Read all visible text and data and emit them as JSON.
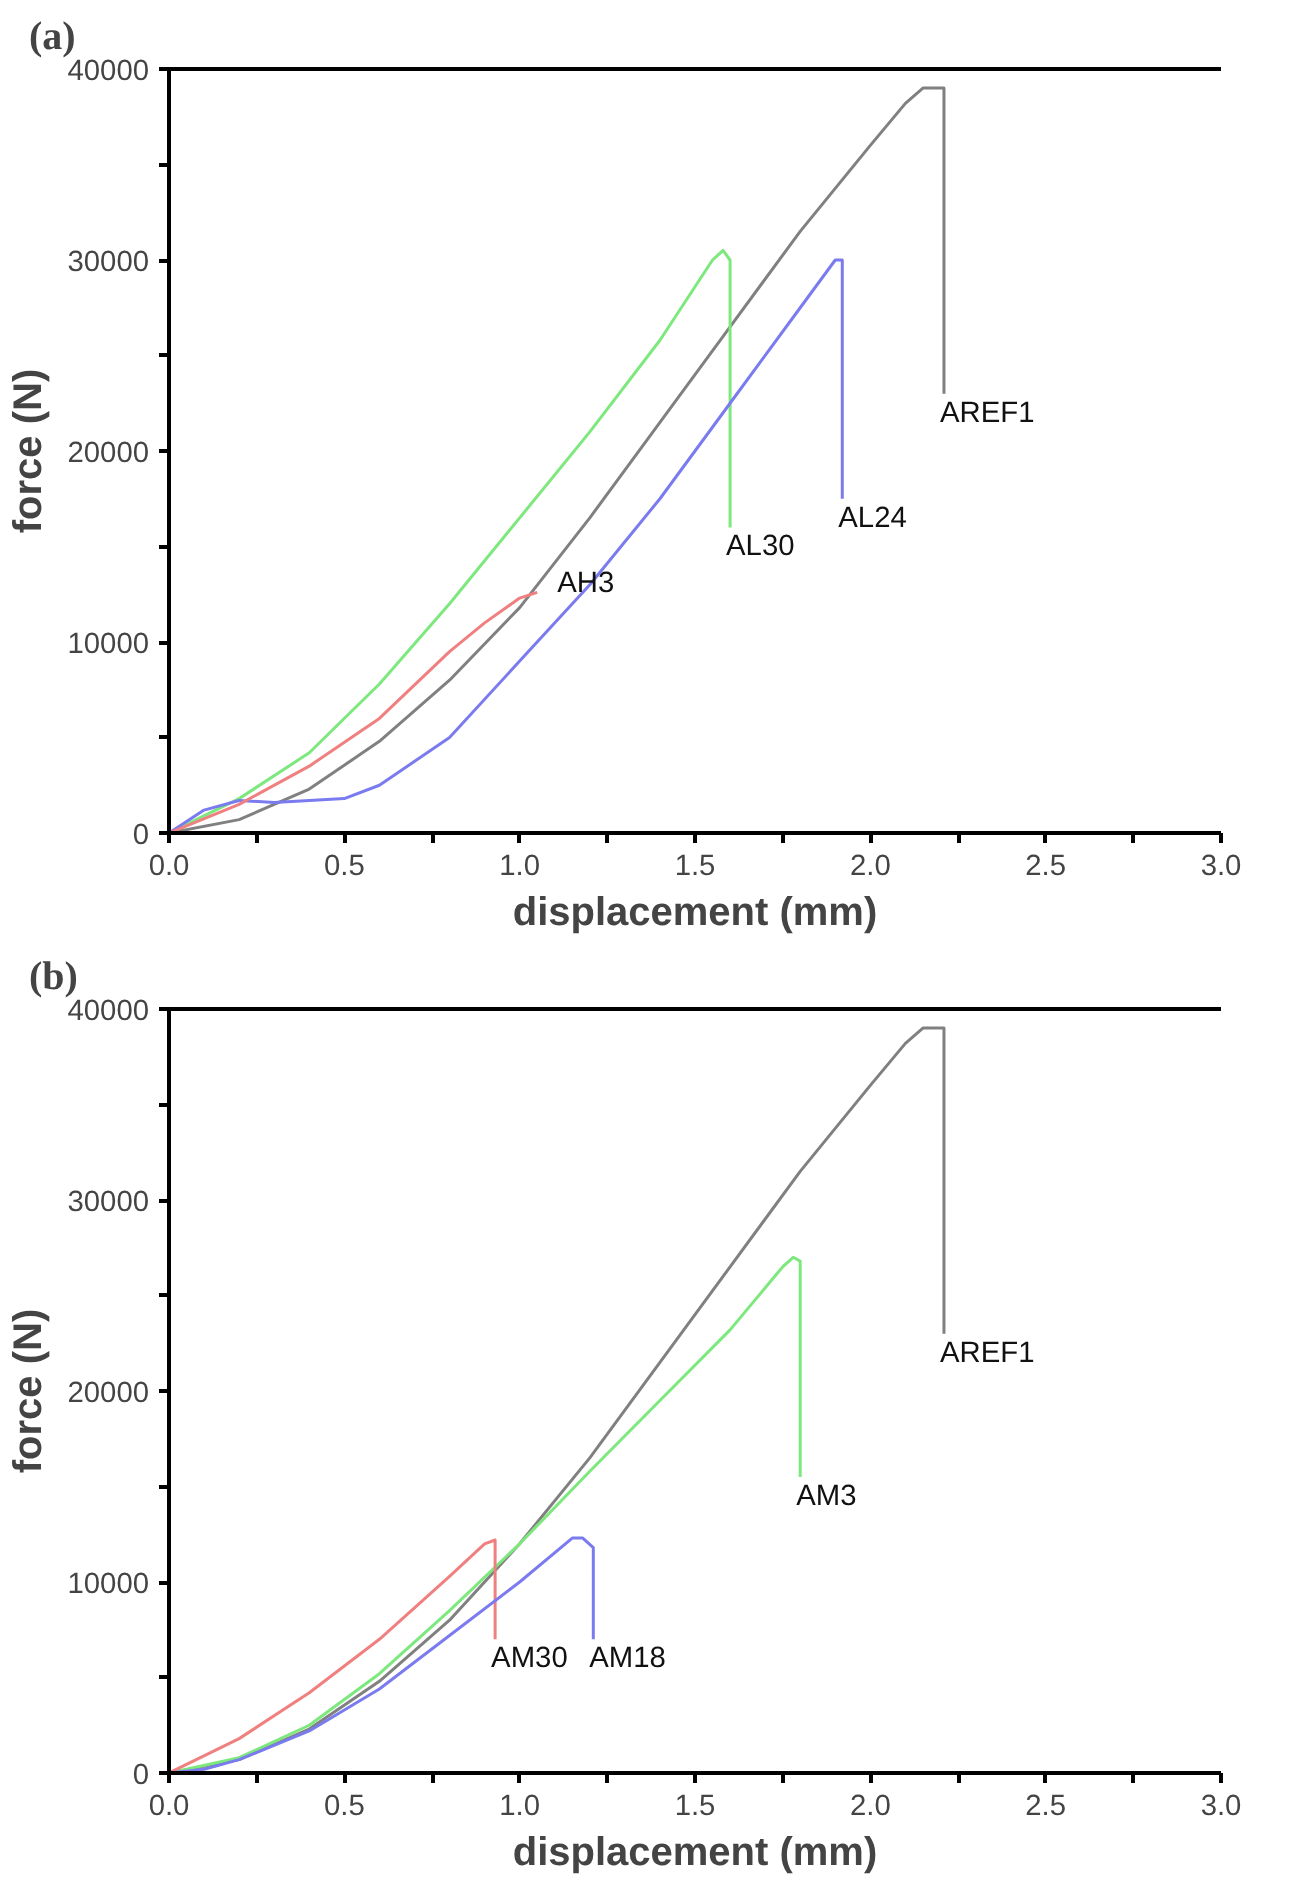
{
  "chart_data": [
    {
      "type": "line",
      "title": "(a)",
      "xlabel": "displacement (mm)",
      "ylabel": "force (N)",
      "xlim": [
        0,
        3.0
      ],
      "ylim": [
        0,
        40000
      ],
      "xticks": [
        {
          "value": 0,
          "label": "0.0"
        },
        {
          "value": 0.25,
          "label": null
        },
        {
          "value": 0.5,
          "label": "0.5"
        },
        {
          "value": 0.75,
          "label": null
        },
        {
          "value": 1.0,
          "label": "1.0"
        },
        {
          "value": 1.25,
          "label": null
        },
        {
          "value": 1.5,
          "label": "1.5"
        },
        {
          "value": 1.75,
          "label": null
        },
        {
          "value": 2.0,
          "label": "2.0"
        },
        {
          "value": 2.25,
          "label": null
        },
        {
          "value": 2.5,
          "label": "2.5"
        },
        {
          "value": 2.75,
          "label": null
        },
        {
          "value": 3.0,
          "label": "3.0"
        }
      ],
      "yticks": [
        0,
        {
          "value": 5000,
          "label": null
        },
        10000,
        {
          "value": 15000,
          "label": null
        },
        20000,
        {
          "value": 25000,
          "label": null
        },
        30000,
        {
          "value": 35000,
          "label": null
        },
        40000
      ],
      "grid": false,
      "marker": "none",
      "line_style": "solid",
      "series": [
        {
          "color": "#808080",
          "x": [
            0,
            0.2,
            0.4,
            0.6,
            0.8,
            1.0,
            1.2,
            1.4,
            1.6,
            1.8,
            2.0,
            2.1,
            2.15,
            2.21,
            2.21
          ],
          "values": [
            0,
            700,
            2300,
            4800,
            8000,
            11800,
            16500,
            21500,
            26500,
            31500,
            36000,
            38200,
            39000,
            39000,
            23000
          ]
        },
        {
          "color": "#7de87d",
          "x": [
            0,
            0.2,
            0.4,
            0.6,
            0.8,
            1.0,
            1.2,
            1.4,
            1.55,
            1.58,
            1.6,
            1.6
          ],
          "values": [
            0,
            1800,
            4200,
            7800,
            12000,
            16500,
            21000,
            25800,
            30000,
            30500,
            30000,
            16000
          ]
        },
        {
          "color": "#7b7bf0",
          "x": [
            0,
            0.1,
            0.2,
            0.3,
            0.5,
            0.6,
            0.8,
            1.0,
            1.2,
            1.4,
            1.6,
            1.8,
            1.9,
            1.92,
            1.92
          ],
          "values": [
            0,
            1200,
            1700,
            1600,
            1800,
            2500,
            5000,
            9000,
            13000,
            17500,
            22500,
            27500,
            30000,
            30000,
            17500
          ]
        },
        {
          "color": "#f08080",
          "x": [
            0,
            0.2,
            0.4,
            0.6,
            0.8,
            0.9,
            1.0,
            1.05
          ],
          "values": [
            0,
            1500,
            3500,
            6000,
            9500,
            11000,
            12300,
            12600
          ]
        }
      ],
      "annotations": [
        {
          "text": "AREF1",
          "x": 2.21,
          "y": 23000
        },
        {
          "text": "AL30",
          "x": 1.6,
          "y": 16000
        },
        {
          "text": "AL24",
          "x": 1.92,
          "y": 17500
        },
        {
          "text": "AH3",
          "x": 1.05,
          "y": 12600
        }
      ]
    },
    {
      "type": "line",
      "title": "(b)",
      "xlabel": "displacement (mm)",
      "ylabel": "force (N)",
      "xlim": [
        0,
        3.0
      ],
      "ylim": [
        0,
        40000
      ],
      "xticks": [
        {
          "value": 0,
          "label": "0.0"
        },
        {
          "value": 0.25,
          "label": null
        },
        {
          "value": 0.5,
          "label": "0.5"
        },
        {
          "value": 0.75,
          "label": null
        },
        {
          "value": 1.0,
          "label": "1.0"
        },
        {
          "value": 1.25,
          "label": null
        },
        {
          "value": 1.5,
          "label": "1.5"
        },
        {
          "value": 1.75,
          "label": null
        },
        {
          "value": 2.0,
          "label": "2.0"
        },
        {
          "value": 2.25,
          "label": null
        },
        {
          "value": 2.5,
          "label": "2.5"
        },
        {
          "value": 2.75,
          "label": null
        },
        {
          "value": 3.0,
          "label": "3.0"
        }
      ],
      "yticks": [
        0,
        {
          "value": 5000,
          "label": null
        },
        10000,
        {
          "value": 15000,
          "label": null
        },
        20000,
        {
          "value": 25000,
          "label": null
        },
        30000,
        {
          "value": 35000,
          "label": null
        },
        40000
      ],
      "grid": false,
      "marker": "none",
      "line_style": "solid",
      "series": [
        {
          "color": "#808080",
          "x": [
            0,
            0.2,
            0.4,
            0.6,
            0.8,
            1.0,
            1.2,
            1.4,
            1.6,
            1.8,
            2.0,
            2.1,
            2.15,
            2.21,
            2.21
          ],
          "values": [
            0,
            700,
            2300,
            4800,
            8000,
            12000,
            16500,
            21500,
            26500,
            31500,
            36000,
            38200,
            39000,
            39000,
            23000
          ]
        },
        {
          "color": "#7de87d",
          "x": [
            0,
            0.2,
            0.4,
            0.6,
            0.8,
            1.0,
            1.2,
            1.4,
            1.6,
            1.75,
            1.78,
            1.8,
            1.8
          ],
          "values": [
            0,
            800,
            2500,
            5200,
            8500,
            12000,
            15800,
            19500,
            23200,
            26500,
            27000,
            26800,
            15500
          ]
        },
        {
          "color": "#f08080",
          "x": [
            0,
            0.2,
            0.4,
            0.6,
            0.8,
            0.9,
            0.93,
            0.93
          ],
          "values": [
            0,
            1800,
            4200,
            7000,
            10300,
            12000,
            12200,
            7000
          ]
        },
        {
          "color": "#7b7bf0",
          "x": [
            0,
            0.1,
            0.2,
            0.4,
            0.6,
            0.8,
            1.0,
            1.15,
            1.18,
            1.21,
            1.21
          ],
          "values": [
            0,
            200,
            700,
            2200,
            4400,
            7200,
            10000,
            12300,
            12300,
            11800,
            7000
          ]
        }
      ],
      "annotations": [
        {
          "text": "AREF1",
          "x": 2.21,
          "y": 23000
        },
        {
          "text": "AM3",
          "x": 1.8,
          "y": 15500
        },
        {
          "text": "AM30",
          "x": 0.93,
          "y": 7000
        },
        {
          "text": "AM18",
          "x": 1.21,
          "y": 7000
        }
      ]
    }
  ]
}
